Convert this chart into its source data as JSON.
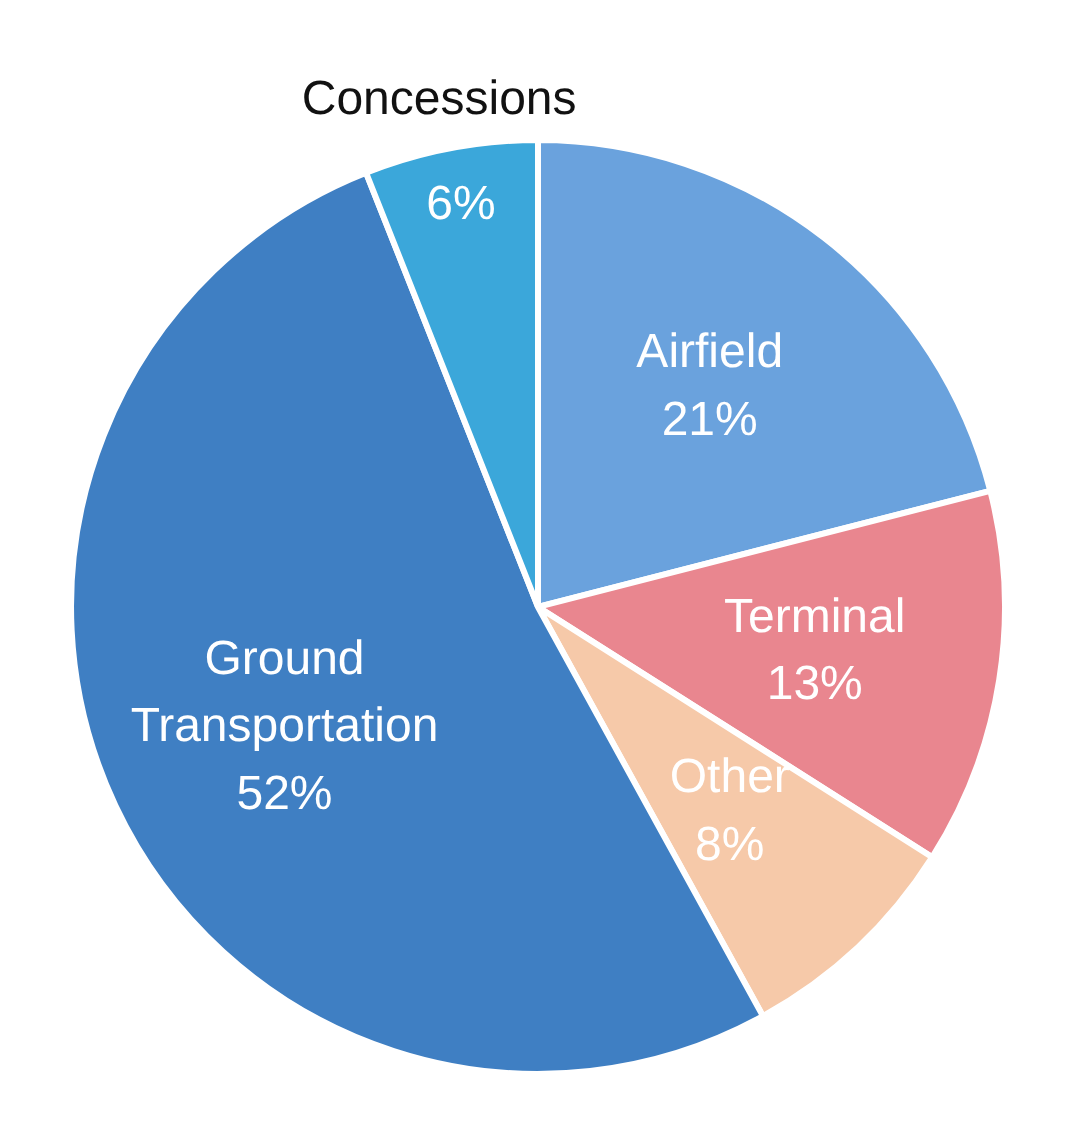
{
  "chart_data": {
    "type": "pie",
    "categories": [
      "Airfield",
      "Terminal",
      "Other",
      "Ground Transportation",
      "Concessions"
    ],
    "values": [
      21,
      13,
      8,
      52,
      6
    ],
    "colors": [
      "#6aa2dd",
      "#e9868f",
      "#f6c9a9",
      "#3f7fc3",
      "#3ba7da"
    ],
    "value_labels": [
      "21%",
      "13%",
      "8%",
      "52%",
      "6%"
    ]
  }
}
